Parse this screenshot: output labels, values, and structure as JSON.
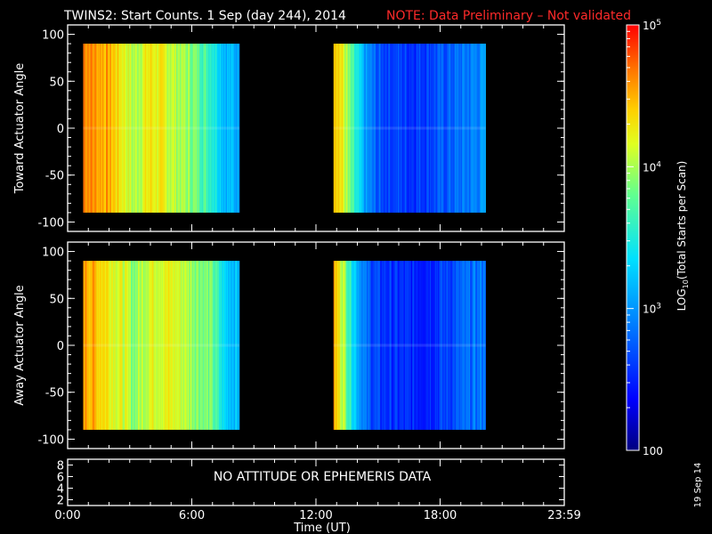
{
  "title": {
    "main": "TWINS2: Start Counts.  1 Sep (day 244), 2014",
    "note": "NOTE: Data Preliminary – Not validated",
    "note_color": "#ff2a2a"
  },
  "side_date": "19 Sep 14",
  "no_data_text": "NO ATTITUDE OR EPHEMERIS DATA",
  "chart_data": [
    {
      "type": "heatmap",
      "panel": "top",
      "ylabel": "Toward Actuator Angle",
      "ylim": [
        -110,
        110
      ],
      "y_ticks": [
        "100",
        "50",
        "0",
        "-50",
        "-100"
      ],
      "xlim_hours": [
        0,
        24
      ],
      "x_ticks": [
        "0:00",
        "6:00",
        "12:00",
        "18:00",
        "23:59"
      ],
      "angle_range": [
        -90,
        90
      ],
      "data_intervals_hours": [
        [
          0.75,
          8.3
        ],
        [
          12.85,
          20.2
        ]
      ],
      "log10_counts_profile": {
        "hours": [
          0.75,
          1.2,
          2.0,
          2.8,
          3.2,
          4.0,
          5.0,
          6.0,
          7.0,
          7.6,
          8.3,
          12.85,
          13.3,
          13.8,
          14.4,
          15.0,
          16.5,
          18.0,
          19.5,
          20.2
        ],
        "values": [
          4.7,
          4.6,
          4.5,
          4.2,
          4.0,
          4.3,
          4.1,
          3.9,
          3.6,
          3.2,
          3.1,
          4.6,
          4.2,
          3.6,
          3.0,
          2.7,
          2.6,
          2.7,
          2.9,
          3.0
        ]
      }
    },
    {
      "type": "heatmap",
      "panel": "bottom",
      "ylabel": "Away Actuator Angle",
      "ylim": [
        -110,
        110
      ],
      "y_ticks": [
        "100",
        "50",
        "0",
        "-50",
        "-100"
      ],
      "xlim_hours": [
        0,
        24
      ],
      "x_ticks": [
        "0:00",
        "6:00",
        "12:00",
        "18:00",
        "23:59"
      ],
      "angle_range": [
        -90,
        90
      ],
      "data_intervals_hours": [
        [
          0.75,
          8.3
        ],
        [
          12.85,
          20.2
        ]
      ],
      "log10_counts_profile": {
        "hours": [
          0.75,
          1.2,
          2.0,
          2.8,
          3.2,
          4.0,
          5.0,
          6.0,
          7.0,
          7.6,
          8.3,
          12.85,
          13.3,
          13.8,
          14.4,
          15.0,
          16.5,
          18.0,
          19.5,
          20.2
        ],
        "values": [
          4.6,
          4.5,
          4.3,
          4.1,
          3.9,
          4.2,
          4.2,
          4.0,
          3.8,
          3.3,
          3.2,
          4.5,
          4.1,
          3.4,
          2.8,
          2.6,
          2.5,
          2.6,
          2.8,
          2.9
        ]
      }
    },
    {
      "type": "line",
      "panel": "ephemeris",
      "y_ticks": [
        "8",
        "6",
        "4",
        "2"
      ],
      "ylim": [
        1,
        9
      ],
      "x_ticks": [
        "0:00",
        "6:00",
        "12:00",
        "18:00",
        "23:59"
      ],
      "xlabel": "Time (UT)"
    }
  ],
  "colorbar": {
    "label_main": "LOG",
    "label_sub": "10",
    "label_rest": "(Total Starts per Scan)",
    "range_log10": [
      2,
      5
    ],
    "tick_labels": [
      {
        "value": 5,
        "text": "10",
        "sup": "5"
      },
      {
        "value": 4,
        "text": "10",
        "sup": "4"
      },
      {
        "value": 3,
        "text": "10",
        "sup": "3"
      },
      {
        "value": 2,
        "text": "100",
        "sup": ""
      }
    ]
  }
}
